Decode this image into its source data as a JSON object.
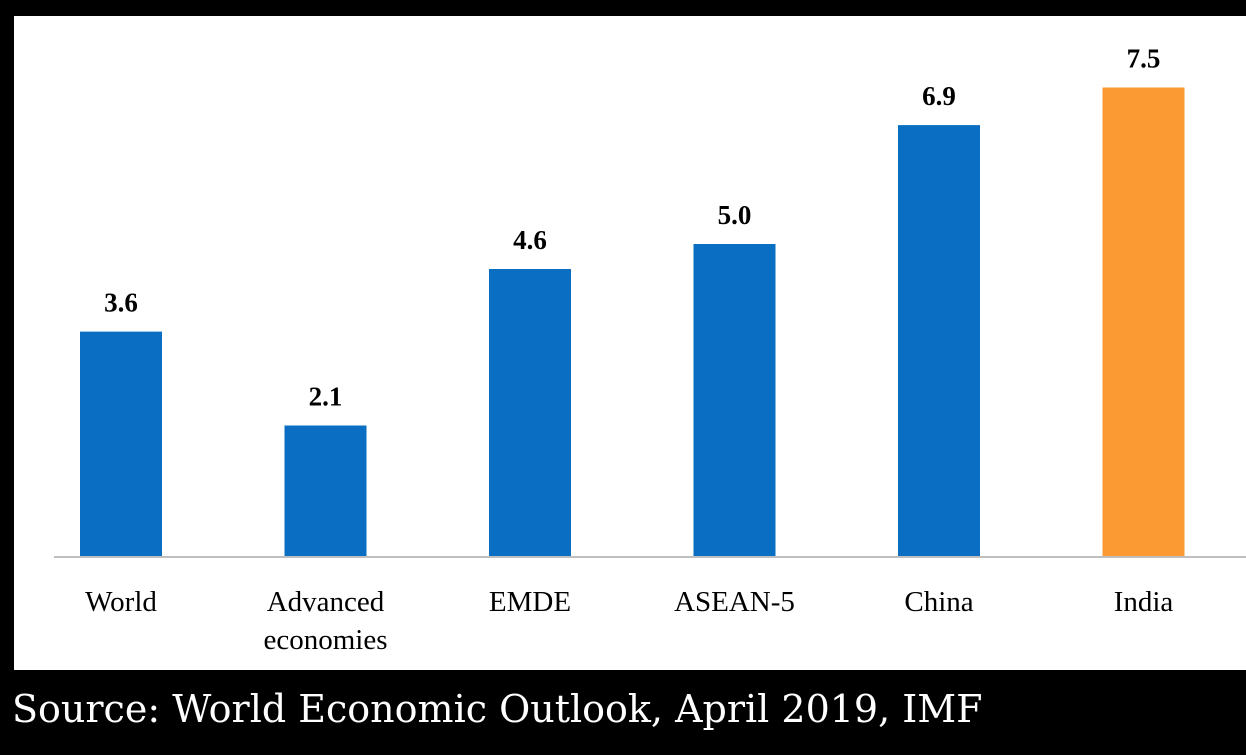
{
  "colors": {
    "default_bar": "#0a6fc2",
    "highlight_bar": "#fb9a33",
    "frame_background": "#000000",
    "plot_background": "#ffffff",
    "baseline": "#bfbfbf"
  },
  "chart_data": {
    "type": "bar",
    "categories": [
      "World",
      "Advanced economies",
      "EMDE",
      "ASEAN-5",
      "China",
      "India"
    ],
    "category_lines": [
      [
        "World"
      ],
      [
        "Advanced",
        "economies"
      ],
      [
        "EMDE"
      ],
      [
        "ASEAN-5"
      ],
      [
        "China"
      ],
      [
        "India"
      ]
    ],
    "values": [
      3.6,
      2.1,
      4.6,
      5.0,
      6.9,
      7.5
    ],
    "value_labels": [
      "3.6",
      "2.1",
      "4.6",
      "5.0",
      "6.9",
      "7.5"
    ],
    "highlight_category": "India",
    "ylim": [
      0,
      8
    ],
    "grid": false,
    "legend": "none"
  },
  "source": {
    "text": "Source: World Economic Outlook, April 2019, IMF"
  }
}
